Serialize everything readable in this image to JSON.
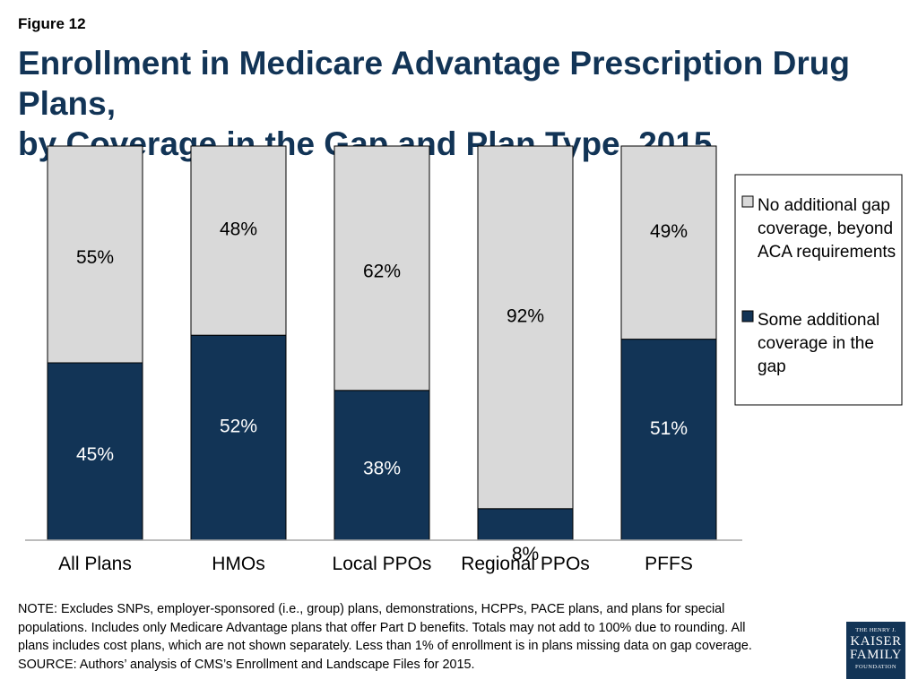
{
  "figure_label": "Figure 12",
  "title_lines": [
    "Enrollment in Medicare Advantage Prescription Drug Plans,",
    "by Coverage in the Gap and Plan Type, 2015"
  ],
  "chart_data": {
    "type": "bar",
    "stacked": true,
    "categories": [
      "All Plans",
      "HMOs",
      "Local PPOs",
      "Regional PPOs",
      "PFFS"
    ],
    "series": [
      {
        "name": "Some additional coverage in the gap",
        "legend_lines": [
          "Some additional",
          "coverage in the",
          "gap"
        ],
        "color": "#123456",
        "label_color": "#ffffff",
        "values": [
          45,
          52,
          38,
          8,
          51
        ],
        "labels": [
          "45%",
          "52%",
          "38%",
          "8%",
          "51%"
        ]
      },
      {
        "name": "No additional gap coverage, beyond ACA requirements",
        "legend_lines": [
          "No additional gap",
          "coverage, beyond",
          "ACA requirements"
        ],
        "color": "#d9d9d9",
        "label_color": "#000000",
        "values": [
          55,
          48,
          62,
          92,
          49
        ],
        "labels": [
          "55%",
          "48%",
          "62%",
          "92%",
          "49%"
        ]
      }
    ],
    "ylim": [
      0,
      100
    ],
    "legend_position": "right",
    "grid": false
  },
  "note_lines": [
    "NOTE:  Excludes SNPs, employer-sponsored (i.e., group) plans, demonstrations, HCPPs, PACE plans, and plans for special",
    "populations.  Includes only Medicare Advantage plans that offer Part D benefits. Totals may not add to 100% due to rounding. All",
    "plans includes cost plans, which are not shown separately.  Less than 1% of enrollment is in plans missing data on gap coverage.",
    "SOURCE:  Authors’ analysis of CMS’s Enrollment and Landscape Files for 2015."
  ],
  "logo": {
    "line1": "THE HENRY J.",
    "line2": "KAISER",
    "line3": "FAMILY",
    "line4": "FOUNDATION"
  }
}
